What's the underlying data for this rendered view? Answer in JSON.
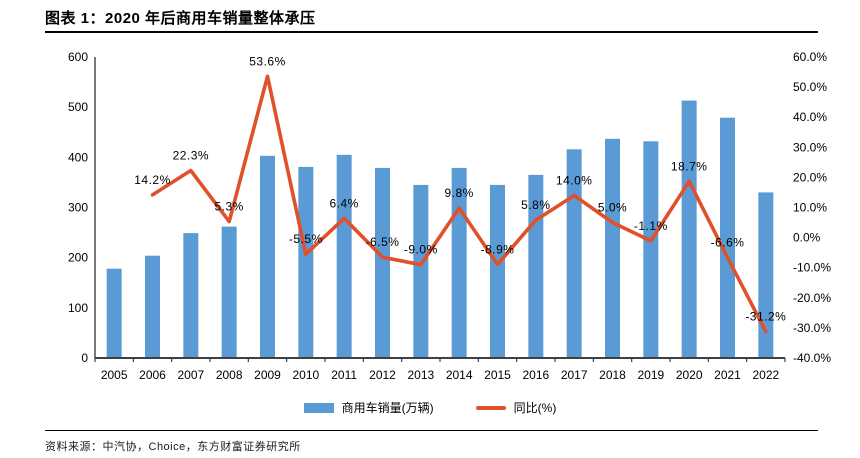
{
  "page": {
    "title": "图表 1：2020 年后商用车销量整体承压",
    "source": "资料来源：中汽协，Choice，东方财富证券研究所"
  },
  "chart_data": {
    "type": "bar+line combo",
    "title": "2020 年后商用车销量整体承压",
    "categories": [
      "2005",
      "2006",
      "2007",
      "2008",
      "2009",
      "2010",
      "2011",
      "2012",
      "2013",
      "2014",
      "2015",
      "2016",
      "2017",
      "2018",
      "2019",
      "2020",
      "2021",
      "2022"
    ],
    "series": [
      {
        "name": "商用车销量(万辆)",
        "type": "bar",
        "axis": "left",
        "color": "#5B9BD5",
        "values": [
          178,
          204,
          249,
          262,
          403,
          381,
          405,
          379,
          345,
          379,
          345,
          365,
          416,
          437,
          432,
          513,
          479,
          330
        ]
      },
      {
        "name": "同比(%)",
        "type": "line",
        "axis": "right",
        "color": "#E0512B",
        "values": [
          null,
          14.2,
          22.3,
          5.3,
          53.6,
          -5.5,
          6.4,
          -6.5,
          -9.0,
          9.8,
          -8.9,
          5.8,
          14.0,
          5.0,
          -1.1,
          18.7,
          -6.6,
          -31.2
        ],
        "point_labels": [
          "",
          "14.2%",
          "22.3%",
          "5.3%",
          "53.6%",
          "-5.5%",
          "6.4%",
          "-6.5%",
          "-9.0%",
          "9.8%",
          "-8.9%",
          "5.8%",
          "14.0%",
          "5.0%",
          "-1.1%",
          "18.7%",
          "-6.6%",
          "-31.2%"
        ]
      }
    ],
    "left_axis": {
      "min": 0,
      "max": 600,
      "step": 100,
      "ticks": [
        "600",
        "500",
        "400",
        "300",
        "200",
        "100",
        "0"
      ]
    },
    "right_axis": {
      "min": -40,
      "max": 60,
      "step": 10,
      "ticks": [
        "60.0%",
        "50.0%",
        "40.0%",
        "30.0%",
        "20.0%",
        "10.0%",
        "0.0%",
        "-10.0%",
        "-20.0%",
        "-30.0%",
        "-40.0%"
      ]
    },
    "grid": false,
    "legend_position": "bottom",
    "legend": [
      {
        "label": "商用车销量(万辆)",
        "color": "#5B9BD5",
        "shape": "rect"
      },
      {
        "label": "同比(%)",
        "color": "#E0512B",
        "shape": "line"
      }
    ]
  }
}
